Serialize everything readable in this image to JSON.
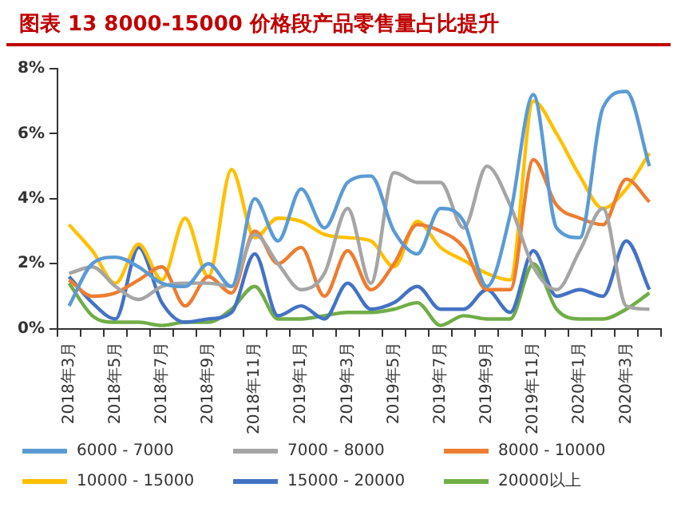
{
  "chart_data": {
    "type": "line",
    "title": "图表 13   8000-15000 价格段产品零售量占比提升",
    "categories": [
      "2018年3月",
      null,
      "2018年5月",
      null,
      "2018年7月",
      null,
      "2018年9月",
      null,
      "2018年11月",
      null,
      "2019年1月",
      null,
      "2019年3月",
      null,
      "2019年5月",
      null,
      "2019年7月",
      null,
      "2019年9月",
      null,
      "2019年11月",
      null,
      "2020年1月",
      null,
      "2020年3月",
      null
    ],
    "series": [
      {
        "name": "6000 - 7000",
        "color": "#5b9bd5",
        "values": [
          0.7,
          2.0,
          2.2,
          1.9,
          1.4,
          1.3,
          2.0,
          1.3,
          4.0,
          2.7,
          4.3,
          3.1,
          4.5,
          4.7,
          3.0,
          2.3,
          3.7,
          3.3,
          1.3,
          3.5,
          7.2,
          3.1,
          2.8,
          6.8,
          7.3,
          5.0
        ]
      },
      {
        "name": "7000 - 8000",
        "color": "#a5a5a5",
        "values": [
          1.7,
          1.9,
          1.3,
          0.9,
          1.3,
          1.4,
          1.4,
          1.3,
          2.9,
          2.0,
          1.2,
          1.7,
          3.7,
          1.4,
          4.8,
          4.5,
          4.5,
          3.1,
          5.0,
          3.8,
          1.9,
          1.2,
          2.4,
          3.7,
          0.7,
          0.6
        ]
      },
      {
        "name": "8000 - 10000",
        "color": "#ed7d31",
        "values": [
          1.5,
          1.0,
          1.1,
          1.5,
          1.9,
          0.7,
          1.6,
          1.1,
          3.0,
          2.0,
          2.5,
          1.0,
          2.4,
          1.2,
          2.0,
          3.2,
          3.0,
          2.5,
          1.2,
          1.2,
          5.2,
          3.8,
          3.4,
          3.2,
          4.6,
          3.9
        ]
      },
      {
        "name": "10000 - 15000",
        "color": "#ffc000",
        "values": [
          3.2,
          2.4,
          1.4,
          2.6,
          1.5,
          3.4,
          1.6,
          4.9,
          2.8,
          3.4,
          3.3,
          2.9,
          2.8,
          2.7,
          1.9,
          3.3,
          2.5,
          2.1,
          1.7,
          1.5,
          7.0,
          6.0,
          4.7,
          3.7,
          4.3,
          5.4
        ]
      },
      {
        "name": "15000 - 20000",
        "color": "#4472c4",
        "values": [
          1.6,
          0.8,
          0.3,
          2.5,
          0.8,
          0.2,
          0.3,
          0.5,
          2.3,
          0.4,
          0.7,
          0.3,
          1.4,
          0.6,
          0.8,
          1.3,
          0.6,
          0.6,
          1.2,
          0.5,
          2.4,
          1.0,
          1.2,
          1.0,
          2.7,
          1.2
        ]
      },
      {
        "name": "20000以上",
        "color": "#70ad47",
        "values": [
          1.4,
          0.4,
          0.2,
          0.2,
          0.1,
          0.2,
          0.2,
          0.6,
          1.3,
          0.3,
          0.3,
          0.4,
          0.5,
          0.5,
          0.6,
          0.8,
          0.1,
          0.4,
          0.3,
          0.3,
          2.0,
          0.6,
          0.3,
          0.3,
          0.6,
          1.1
        ]
      }
    ],
    "ylim": [
      0,
      8
    ],
    "yticks": [
      {
        "value": 0,
        "label": "0%"
      },
      {
        "value": 2,
        "label": "2%"
      },
      {
        "value": 4,
        "label": "4%"
      },
      {
        "value": 6,
        "label": "6%"
      },
      {
        "value": 8,
        "label": "8%"
      }
    ],
    "grid": false,
    "legend": "bottom",
    "marker": "none",
    "line_style": "solid"
  }
}
